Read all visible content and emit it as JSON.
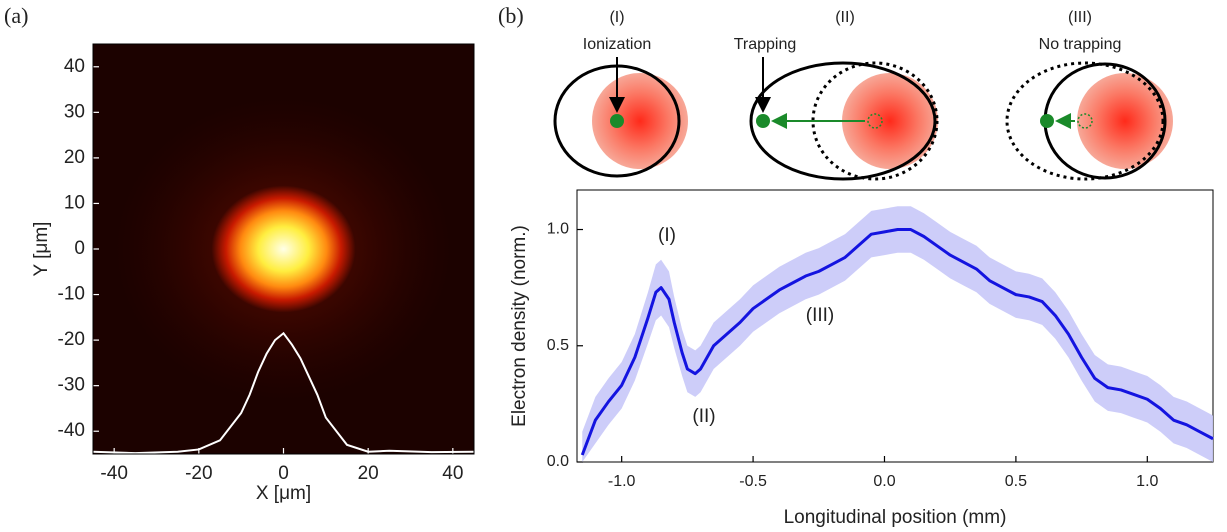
{
  "panel_labels": [
    "(a)",
    "(b)"
  ],
  "diagrams": [
    {
      "label": "(I)",
      "caption": "Ionization"
    },
    {
      "label": "(II)",
      "caption": "Trapping"
    },
    {
      "label": "(III)",
      "caption": "No trapping"
    }
  ],
  "chart_data": [
    {
      "type": "image",
      "xlabel": "X [μm]",
      "ylabel": "Y [μm]",
      "xlim": [
        -45,
        45
      ],
      "ylim": [
        -45,
        45
      ],
      "xticks": [
        -40,
        -20,
        0,
        20,
        40
      ],
      "yticks": [
        -40,
        -30,
        -20,
        -10,
        0,
        10,
        20,
        30,
        40
      ],
      "background": "#1c0200",
      "spot": {
        "x": 0,
        "y": 0,
        "radius": 10
      },
      "x": [
        -45,
        -35,
        -25,
        -20,
        -15,
        -10,
        -8,
        -6,
        -4,
        -2,
        0,
        2,
        4,
        6,
        8,
        10,
        15,
        20,
        25,
        35,
        45
      ],
      "series": [
        {
          "color": "#ffffff",
          "values": [
            -44.5,
            -44.8,
            -44.5,
            -44,
            -42,
            -36,
            -32,
            -27,
            -23,
            -20,
            -18.5,
            -21,
            -24,
            -28,
            -32,
            -37,
            -43,
            -44.5,
            -44.3,
            -44.6,
            -44.5
          ]
        }
      ]
    },
    {
      "type": "line",
      "xlabel": "Longitudinal position (mm)",
      "ylabel": "Electron density (norm.)",
      "xlim": [
        -1.17,
        1.25
      ],
      "ylim": [
        0,
        1.17
      ],
      "xticks": [
        {
          "value": -1,
          "label": "-1.0"
        },
        -0.5,
        {
          "value": 0,
          "label": "0.0"
        },
        0.5,
        {
          "value": 1,
          "label": "1.0"
        }
      ],
      "yticks": [
        {
          "value": 0,
          "label": "0.0"
        },
        0.5,
        {
          "value": 1,
          "label": "1.0"
        }
      ],
      "annotations": [
        "(I)",
        "(II)",
        "(III)"
      ],
      "x": [
        -1.15,
        -1.1,
        -1.05,
        -1.0,
        -0.95,
        -0.9,
        -0.87,
        -0.85,
        -0.82,
        -0.8,
        -0.77,
        -0.75,
        -0.72,
        -0.7,
        -0.65,
        -0.6,
        -0.55,
        -0.5,
        -0.45,
        -0.4,
        -0.35,
        -0.3,
        -0.25,
        -0.2,
        -0.15,
        -0.1,
        -0.05,
        0.0,
        0.05,
        0.1,
        0.15,
        0.2,
        0.25,
        0.3,
        0.35,
        0.4,
        0.45,
        0.5,
        0.55,
        0.6,
        0.65,
        0.7,
        0.75,
        0.8,
        0.85,
        0.9,
        0.95,
        1.0,
        1.05,
        1.1,
        1.15,
        1.2,
        1.25
      ],
      "series": [
        {
          "color": "#1414e0",
          "band_color": "#c8c8f8",
          "values": [
            0.03,
            0.18,
            0.26,
            0.33,
            0.45,
            0.62,
            0.73,
            0.75,
            0.7,
            0.6,
            0.47,
            0.4,
            0.38,
            0.4,
            0.5,
            0.55,
            0.6,
            0.66,
            0.7,
            0.74,
            0.77,
            0.8,
            0.82,
            0.85,
            0.88,
            0.93,
            0.98,
            0.99,
            1.0,
            1.0,
            0.97,
            0.93,
            0.89,
            0.86,
            0.83,
            0.78,
            0.75,
            0.72,
            0.71,
            0.69,
            0.63,
            0.55,
            0.45,
            0.36,
            0.32,
            0.31,
            0.29,
            0.27,
            0.23,
            0.18,
            0.16,
            0.13,
            0.1
          ],
          "error": [
            0.1,
            0.1,
            0.1,
            0.1,
            0.1,
            0.11,
            0.12,
            0.12,
            0.12,
            0.11,
            0.1,
            0.1,
            0.1,
            0.1,
            0.1,
            0.1,
            0.1,
            0.1,
            0.1,
            0.1,
            0.1,
            0.1,
            0.1,
            0.1,
            0.1,
            0.1,
            0.1,
            0.1,
            0.1,
            0.1,
            0.1,
            0.1,
            0.1,
            0.1,
            0.1,
            0.1,
            0.1,
            0.1,
            0.1,
            0.1,
            0.1,
            0.1,
            0.1,
            0.1,
            0.1,
            0.1,
            0.1,
            0.1,
            0.1,
            0.1,
            0.1,
            0.1,
            0.1
          ]
        }
      ]
    }
  ]
}
